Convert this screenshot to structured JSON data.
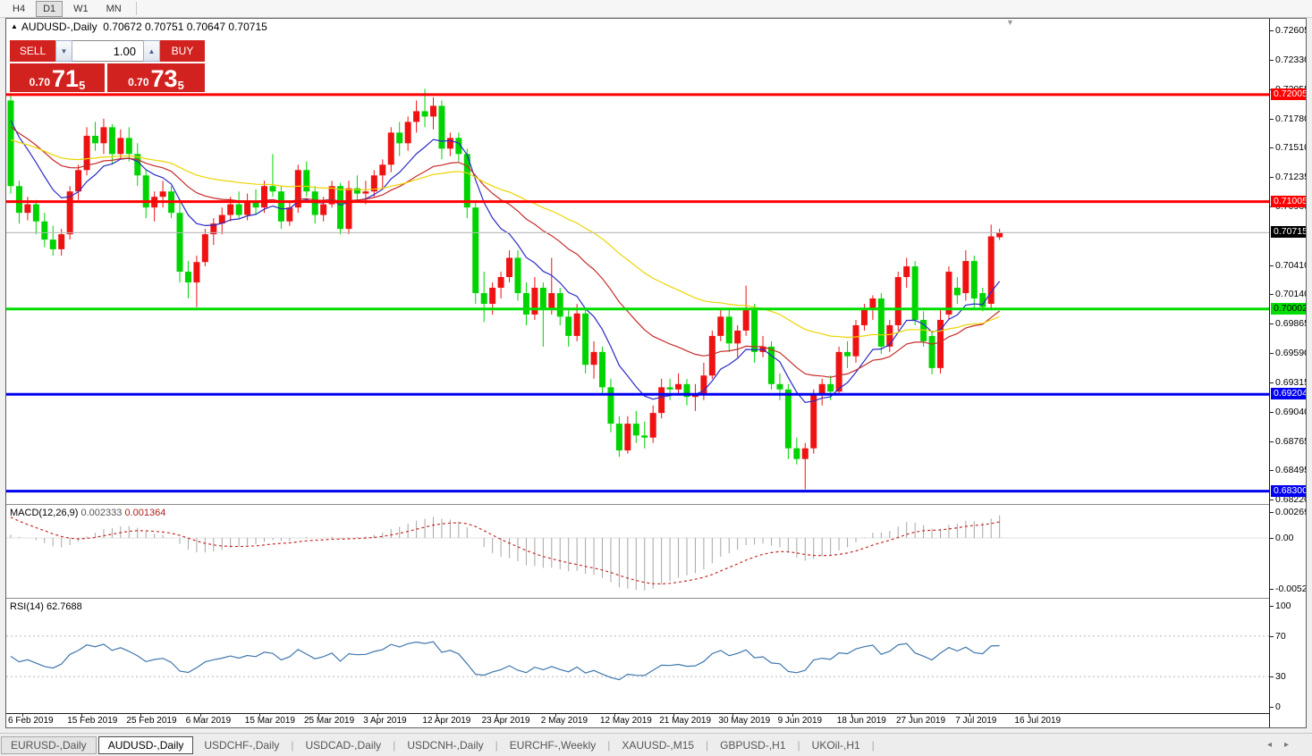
{
  "toolbar": {
    "timeframes": [
      "H4",
      "D1",
      "W1",
      "MN"
    ],
    "active": "D1"
  },
  "chart": {
    "title_symbol": "AUDUSD-,Daily",
    "ohlc_text": "0.70672 0.70751 0.70647 0.70715",
    "collapse_arrow": "▼",
    "trade_panel": {
      "sell_label": "SELL",
      "buy_label": "BUY",
      "volume": "1.00",
      "spin_down": "▼",
      "spin_up": "▲",
      "sell_price": {
        "prefix": "0.70",
        "big": "71",
        "sup": "5"
      },
      "buy_price": {
        "prefix": "0.70",
        "big": "73",
        "sup": "5"
      },
      "red": "#d2221f"
    },
    "colors": {
      "candle_up": "#ef1212",
      "candle_down": "#00d400",
      "ma_fast": "#2b2bc4",
      "ma_mid": "#c62b2b",
      "ma_slow": "#ecd400",
      "bid_line": "#bdbdbd"
    },
    "hlines": [
      {
        "price": 0.72005,
        "color": "#ff0000",
        "width": 3,
        "label": "0.72005",
        "badge_bg": "#ff0000",
        "badge_fg": "#ffffff"
      },
      {
        "price": 0.71005,
        "color": "#ff0000",
        "width": 3,
        "label": "0.71005",
        "badge_bg": "#ff0000",
        "badge_fg": "#ffffff"
      },
      {
        "price": 0.70715,
        "color": "#bdbdbd",
        "width": 1,
        "label": "0.70715",
        "badge_bg": "#000000",
        "badge_fg": "#ffffff"
      },
      {
        "price": 0.70002,
        "color": "#00dd00",
        "width": 3,
        "label": "0.70002",
        "badge_bg": "#00dd00",
        "badge_fg": "#000000"
      },
      {
        "price": 0.69204,
        "color": "#0000f0",
        "width": 3,
        "label": "0.69204",
        "badge_bg": "#0000f0",
        "badge_fg": "#ffffff"
      },
      {
        "price": 0.683,
        "color": "#0000f0",
        "width": 3,
        "label": "0.68300",
        "badge_bg": "#0000f0",
        "badge_fg": "#ffffff"
      }
    ],
    "price_ticks": [
      "0.72605",
      "0.72330",
      "0.72055",
      "0.71780",
      "0.71510",
      "0.71235",
      "0.70960",
      "0.70410",
      "0.70140",
      "0.69865",
      "0.69590",
      "0.69315",
      "0.69040",
      "0.68765",
      "0.68495",
      "0.68220"
    ],
    "ma": [
      {
        "period": 10,
        "seed": 0.719,
        "colorKey": "ma_fast"
      },
      {
        "period": 25,
        "seed": 0.7175,
        "colorKey": "ma_mid"
      },
      {
        "period": 52,
        "seed": 0.716,
        "colorKey": "ma_slow"
      }
    ],
    "x_labels": [
      "6 Feb 2019",
      "15 Feb 2019",
      "25 Feb 2019",
      "6 Mar 2019",
      "15 Mar 2019",
      "25 Mar 2019",
      "3 Apr 2019",
      "12 Apr 2019",
      "23 Apr 2019",
      "2 May 2019",
      "12 May 2019",
      "21 May 2019",
      "30 May 2019",
      "9 Jun 2019",
      "18 Jun 2019",
      "27 Jun 2019",
      "7 Jul 2019",
      "16 Jul 2019"
    ],
    "candles": [
      [
        0.7195,
        0.7201,
        0.7108,
        0.7115
      ],
      [
        0.7115,
        0.712,
        0.708,
        0.709
      ],
      [
        0.709,
        0.7105,
        0.7083,
        0.7098
      ],
      [
        0.7098,
        0.7102,
        0.707,
        0.7082
      ],
      [
        0.7082,
        0.709,
        0.7058,
        0.7065
      ],
      [
        0.7065,
        0.7078,
        0.705,
        0.7056
      ],
      [
        0.7056,
        0.7075,
        0.705,
        0.707
      ],
      [
        0.707,
        0.7115,
        0.7065,
        0.711
      ],
      [
        0.711,
        0.7135,
        0.7102,
        0.713
      ],
      [
        0.713,
        0.717,
        0.7125,
        0.7162
      ],
      [
        0.7162,
        0.7175,
        0.7148,
        0.7155
      ],
      [
        0.7155,
        0.7178,
        0.7145,
        0.717
      ],
      [
        0.717,
        0.7173,
        0.7135,
        0.7145
      ],
      [
        0.7145,
        0.7168,
        0.714,
        0.716
      ],
      [
        0.716,
        0.717,
        0.7138,
        0.7145
      ],
      [
        0.7145,
        0.7155,
        0.7115,
        0.7125
      ],
      [
        0.7125,
        0.713,
        0.7085,
        0.7095
      ],
      [
        0.7095,
        0.711,
        0.7082,
        0.7105
      ],
      [
        0.7105,
        0.712,
        0.7095,
        0.711
      ],
      [
        0.711,
        0.7115,
        0.7085,
        0.709
      ],
      [
        0.709,
        0.71,
        0.7025,
        0.7035
      ],
      [
        0.7035,
        0.7045,
        0.701,
        0.7025
      ],
      [
        0.7025,
        0.705,
        0.7002,
        0.7044
      ],
      [
        0.7044,
        0.7075,
        0.704,
        0.707
      ],
      [
        0.707,
        0.7085,
        0.706,
        0.708
      ],
      [
        0.708,
        0.7095,
        0.707,
        0.7088
      ],
      [
        0.7088,
        0.7105,
        0.7082,
        0.7098
      ],
      [
        0.7098,
        0.711,
        0.7085,
        0.7088
      ],
      [
        0.7088,
        0.7108,
        0.7083,
        0.71
      ],
      [
        0.71,
        0.7112,
        0.7088,
        0.7095
      ],
      [
        0.7095,
        0.712,
        0.709,
        0.7115
      ],
      [
        0.7115,
        0.7145,
        0.7105,
        0.711
      ],
      [
        0.711,
        0.7115,
        0.7075,
        0.7082
      ],
      [
        0.7082,
        0.71,
        0.7078,
        0.7095
      ],
      [
        0.7095,
        0.7135,
        0.709,
        0.713
      ],
      [
        0.713,
        0.7138,
        0.7105,
        0.711
      ],
      [
        0.711,
        0.7115,
        0.708,
        0.7088
      ],
      [
        0.7088,
        0.7105,
        0.7082,
        0.7098
      ],
      [
        0.7098,
        0.712,
        0.7095,
        0.7115
      ],
      [
        0.7115,
        0.7118,
        0.707,
        0.7075
      ],
      [
        0.7075,
        0.712,
        0.707,
        0.7113
      ],
      [
        0.7113,
        0.7125,
        0.71,
        0.7108
      ],
      [
        0.7108,
        0.712,
        0.7098,
        0.711
      ],
      [
        0.711,
        0.713,
        0.7105,
        0.7125
      ],
      [
        0.7125,
        0.714,
        0.7113,
        0.7135
      ],
      [
        0.7135,
        0.717,
        0.7128,
        0.7165
      ],
      [
        0.7165,
        0.7175,
        0.7143,
        0.7155
      ],
      [
        0.7155,
        0.718,
        0.7148,
        0.7175
      ],
      [
        0.7175,
        0.7195,
        0.7165,
        0.7185
      ],
      [
        0.7185,
        0.7206,
        0.717,
        0.718
      ],
      [
        0.718,
        0.7198,
        0.7168,
        0.719
      ],
      [
        0.719,
        0.7195,
        0.714,
        0.715
      ],
      [
        0.715,
        0.7165,
        0.7143,
        0.716
      ],
      [
        0.716,
        0.7165,
        0.7138,
        0.7145
      ],
      [
        0.7145,
        0.715,
        0.7085,
        0.7095
      ],
      [
        0.7095,
        0.71,
        0.7005,
        0.7015
      ],
      [
        0.7015,
        0.7035,
        0.6988,
        0.7005
      ],
      [
        0.7005,
        0.7025,
        0.6995,
        0.702
      ],
      [
        0.702,
        0.7035,
        0.701,
        0.703
      ],
      [
        0.703,
        0.7055,
        0.7025,
        0.7048
      ],
      [
        0.7048,
        0.7055,
        0.7008,
        0.7015
      ],
      [
        0.7015,
        0.7025,
        0.6985,
        0.6995
      ],
      [
        0.6995,
        0.703,
        0.699,
        0.702
      ],
      [
        0.702,
        0.7025,
        0.6965,
        0.7
      ],
      [
        0.7,
        0.7048,
        0.6995,
        0.7015
      ],
      [
        0.7015,
        0.702,
        0.6985,
        0.6993
      ],
      [
        0.6993,
        0.7,
        0.6965,
        0.6975
      ],
      [
        0.6975,
        0.7005,
        0.697,
        0.6996
      ],
      [
        0.6996,
        0.7,
        0.694,
        0.6948
      ],
      [
        0.6948,
        0.697,
        0.6935,
        0.696
      ],
      [
        0.696,
        0.6965,
        0.692,
        0.6927
      ],
      [
        0.6927,
        0.6935,
        0.6885,
        0.6893
      ],
      [
        0.6893,
        0.69,
        0.6862,
        0.6868
      ],
      [
        0.6868,
        0.69,
        0.6865,
        0.6893
      ],
      [
        0.6893,
        0.6905,
        0.6875,
        0.6882
      ],
      [
        0.6882,
        0.6895,
        0.687,
        0.688
      ],
      [
        0.688,
        0.691,
        0.6875,
        0.6903
      ],
      [
        0.6903,
        0.6935,
        0.6898,
        0.6927
      ],
      [
        0.6927,
        0.6935,
        0.6915,
        0.6925
      ],
      [
        0.6925,
        0.694,
        0.692,
        0.693
      ],
      [
        0.693,
        0.6935,
        0.691,
        0.6918
      ],
      [
        0.6918,
        0.693,
        0.6905,
        0.692
      ],
      [
        0.692,
        0.695,
        0.6915,
        0.6938
      ],
      [
        0.6938,
        0.698,
        0.6935,
        0.6975
      ],
      [
        0.6975,
        0.7,
        0.697,
        0.6993
      ],
      [
        0.6993,
        0.7,
        0.696,
        0.6968
      ],
      [
        0.6968,
        0.6985,
        0.6955,
        0.698
      ],
      [
        0.698,
        0.7022,
        0.6975,
        0.7
      ],
      [
        0.7,
        0.7005,
        0.695,
        0.696
      ],
      [
        0.696,
        0.6975,
        0.6955,
        0.6965
      ],
      [
        0.6965,
        0.697,
        0.6925,
        0.693
      ],
      [
        0.693,
        0.694,
        0.6915,
        0.6925
      ],
      [
        0.6925,
        0.693,
        0.686,
        0.687
      ],
      [
        0.687,
        0.688,
        0.6855,
        0.686
      ],
      [
        0.686,
        0.6875,
        0.68317,
        0.687
      ],
      [
        0.687,
        0.6925,
        0.6865,
        0.692
      ],
      [
        0.692,
        0.6935,
        0.691,
        0.693
      ],
      [
        0.693,
        0.6938,
        0.6915,
        0.6923
      ],
      [
        0.6923,
        0.6965,
        0.692,
        0.696
      ],
      [
        0.696,
        0.697,
        0.6945,
        0.6956
      ],
      [
        0.6956,
        0.699,
        0.695,
        0.6985
      ],
      [
        0.6985,
        0.7005,
        0.698,
        0.7
      ],
      [
        0.7,
        0.7013,
        0.699,
        0.701
      ],
      [
        0.701,
        0.7015,
        0.6958,
        0.6965
      ],
      [
        0.6965,
        0.699,
        0.696,
        0.6985
      ],
      [
        0.6985,
        0.7035,
        0.698,
        0.703
      ],
      [
        0.703,
        0.7048,
        0.702,
        0.704
      ],
      [
        0.704,
        0.7045,
        0.6985,
        0.699
      ],
      [
        0.699,
        0.6998,
        0.6965,
        0.697
      ],
      [
        0.6975,
        0.698,
        0.6939,
        0.6945
      ],
      [
        0.6945,
        0.7,
        0.694,
        0.699
      ],
      [
        0.6995,
        0.704,
        0.699,
        0.7035
      ],
      [
        0.702,
        0.703,
        0.7005,
        0.7013
      ],
      [
        0.7015,
        0.7055,
        0.7008,
        0.7045
      ],
      [
        0.7045,
        0.705,
        0.7,
        0.701
      ],
      [
        0.7015,
        0.702,
        0.6998,
        0.7002
      ],
      [
        0.7005,
        0.7079,
        0.6999,
        0.7068
      ],
      [
        0.70672,
        0.70751,
        0.70647,
        0.70715
      ]
    ]
  },
  "macd": {
    "label": "MACD(12,26,9)",
    "value_main": "0.002333",
    "value_signal": "0.001364",
    "fast": 12,
    "slow": 26,
    "signal": 9,
    "axis": [
      "0.002694",
      "0.00",
      "-0.005242"
    ],
    "hist_color": "#a6a6a6",
    "signal_color": "#c62b2b"
  },
  "rsi": {
    "label": "RSI(14)",
    "value": "62.7688",
    "period": 14,
    "axis": [
      "100",
      "70",
      "30",
      "0"
    ],
    "levels": [
      70,
      30
    ],
    "line_color": "#4077ad",
    "level_color": "#b8b8b8"
  },
  "tabs": {
    "items": [
      "EURUSD-,Daily",
      "AUDUSD-,Daily",
      "USDCHF-,Daily",
      "USDCAD-,Daily",
      "USDCNH-,Daily",
      "EURCHF-,Weekly",
      "XAUUSD-,M15",
      "GBPUSD-,H1",
      "UKOil-,H1"
    ],
    "active_index": 1,
    "nav_left": "◂",
    "nav_right": "▸"
  }
}
